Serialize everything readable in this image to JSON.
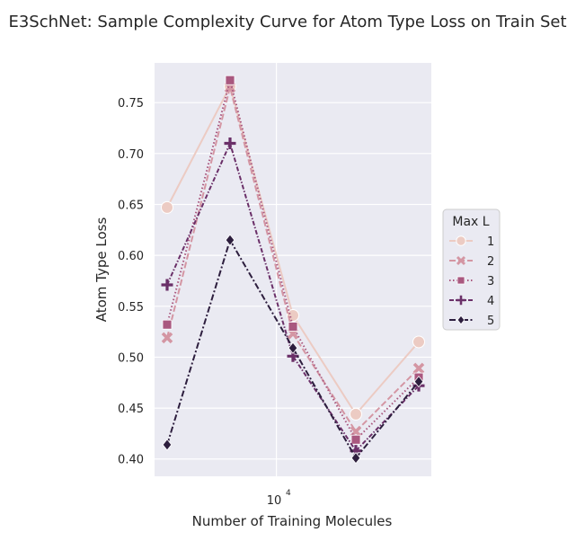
{
  "chart_data": {
    "type": "line",
    "title": "E3SchNet: Sample Complexity Curve for Atom Type Loss on Train Set",
    "xlabel": "Number of Training Molecules",
    "ylabel": "Atom Type Loss",
    "x_scale": "log",
    "x_major_tick_label": "10",
    "x_major_tick_exponent": "4",
    "x": [
      3000,
      6000,
      12000,
      24000,
      48000
    ],
    "ylim": [
      0.383,
      0.789
    ],
    "yticks": [
      "0.40",
      "0.45",
      "0.50",
      "0.55",
      "0.60",
      "0.65",
      "0.70",
      "0.75"
    ],
    "grid": true,
    "background": "#eaeaf2",
    "legend": {
      "title": "Max L",
      "placement": "right"
    },
    "series": [
      {
        "name": "1",
        "values": [
          0.647,
          0.766,
          0.541,
          0.444,
          0.515
        ],
        "color": "#eccbc3",
        "marker": "circle",
        "dash": "solid"
      },
      {
        "name": "2",
        "values": [
          0.519,
          0.765,
          0.523,
          0.427,
          0.489
        ],
        "color": "#d496a3",
        "marker": "x",
        "dash": "dashed"
      },
      {
        "name": "3",
        "values": [
          0.532,
          0.772,
          0.53,
          0.419,
          0.48
        ],
        "color": "#a9587f",
        "marker": "square",
        "dash": "dotted"
      },
      {
        "name": "4",
        "values": [
          0.571,
          0.71,
          0.501,
          0.408,
          0.472
        ],
        "color": "#6a2f68",
        "marker": "plus",
        "dash": "dashdot-short"
      },
      {
        "name": "5",
        "values": [
          0.414,
          0.615,
          0.509,
          0.401,
          0.476
        ],
        "color": "#2d1e3e",
        "marker": "diamond",
        "dash": "dashdot"
      }
    ]
  }
}
